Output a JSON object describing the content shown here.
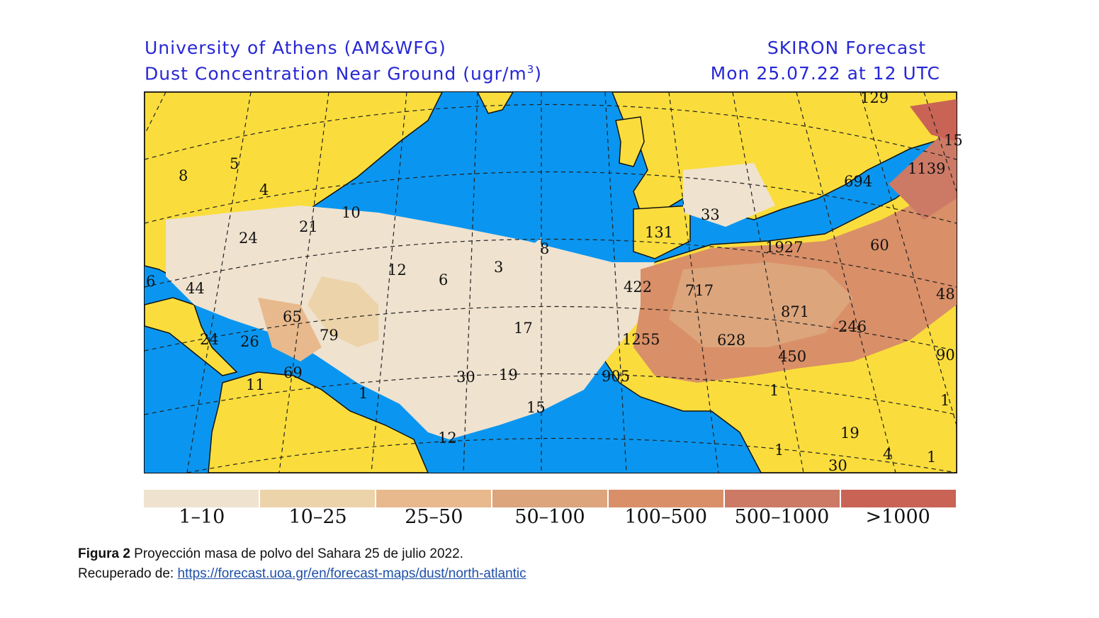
{
  "header": {
    "line1_left": "University of Athens (AM&WFG)",
    "line2_left_pre": "Dust Concentration Near Ground (ugr/m",
    "line2_left_sup": "3",
    "line2_left_post": ")",
    "line1_right": "SKIRON Forecast",
    "line2_right": "Mon 25.07.22 at 12 UTC"
  },
  "map": {
    "colors": {
      "ocean": "#0a96f0",
      "land": "#fadd3c",
      "grid": "#222222"
    },
    "labels": [
      {
        "text": "5"
      },
      {
        "text": "8"
      },
      {
        "text": "4"
      },
      {
        "text": "10"
      },
      {
        "text": "21"
      },
      {
        "text": "24"
      },
      {
        "text": "12"
      },
      {
        "text": "6"
      },
      {
        "text": "3"
      },
      {
        "text": "8"
      },
      {
        "text": "6"
      },
      {
        "text": "44"
      },
      {
        "text": "65"
      },
      {
        "text": "79"
      },
      {
        "text": "24"
      },
      {
        "text": "26"
      },
      {
        "text": "17"
      },
      {
        "text": "69"
      },
      {
        "text": "11"
      },
      {
        "text": "1"
      },
      {
        "text": "30"
      },
      {
        "text": "19"
      },
      {
        "text": "15"
      },
      {
        "text": "12"
      },
      {
        "text": "905"
      },
      {
        "text": "1255"
      },
      {
        "text": "422"
      },
      {
        "text": "717"
      },
      {
        "text": "131"
      },
      {
        "text": "33"
      },
      {
        "text": "1927"
      },
      {
        "text": "628"
      },
      {
        "text": "871"
      },
      {
        "text": "450"
      },
      {
        "text": "246"
      },
      {
        "text": "60"
      },
      {
        "text": "694"
      },
      {
        "text": "1139"
      },
      {
        "text": "15"
      },
      {
        "text": "129"
      },
      {
        "text": "48"
      },
      {
        "text": "90"
      },
      {
        "text": "1"
      },
      {
        "text": "19"
      },
      {
        "text": "4"
      },
      {
        "text": "1"
      },
      {
        "text": "1"
      },
      {
        "text": "30"
      },
      {
        "text": "1"
      }
    ]
  },
  "legend": {
    "items": [
      {
        "label": "1–10",
        "color": "#efe2cf"
      },
      {
        "label": "10–25",
        "color": "#ecd3a9"
      },
      {
        "label": "25–50",
        "color": "#e8b98c"
      },
      {
        "label": "50–100",
        "color": "#dca57c"
      },
      {
        "label": "100–500",
        "color": "#d98f68"
      },
      {
        "label": "500–1000",
        "color": "#cc7a66"
      },
      {
        "label": ">1000",
        "color": "#c96355"
      }
    ]
  },
  "caption": {
    "bold": "Figura 2",
    "text": " Proyección masa de polvo del Sahara 25 de julio 2022.",
    "line2_prefix": "Recuperado de: ",
    "url": "https://forecast.uoa.gr/en/forecast-maps/dust/north-atlantic"
  }
}
